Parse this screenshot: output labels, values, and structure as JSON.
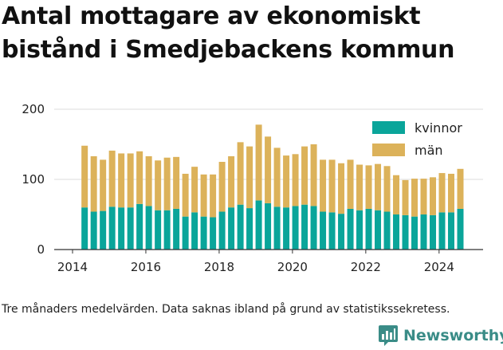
{
  "title": "Antal mottagare av ekonomiskt bistånd i Smedjebackens kommun",
  "caption": "Tre månaders medelvärden. Data saknas ibland på grund av statistikssekretess.",
  "brand": {
    "name": "Newsworthy",
    "color": "#3a8c87",
    "icon": "bar-chart-logo-icon"
  },
  "colors": {
    "kvinnor": "#0aa59a",
    "man": "#dcb25a",
    "axis": "#333333",
    "grid": "#dddddd"
  },
  "chart_data": {
    "type": "bar",
    "stacked": true,
    "x_tick_labels": [
      "2014",
      "2016",
      "2018",
      "2020",
      "2022",
      "2024"
    ],
    "x_range": [
      2013.5,
      2025.2
    ],
    "y_tick_labels": [
      "0",
      "100",
      "200"
    ],
    "ylim": [
      0,
      200
    ],
    "grid": "horizontal",
    "legend_position": "top-right",
    "x": [
      2014.33,
      2014.58,
      2014.83,
      2015.08,
      2015.33,
      2015.58,
      2015.83,
      2016.08,
      2016.33,
      2016.58,
      2016.83,
      2017.08,
      2017.33,
      2017.58,
      2017.83,
      2018.08,
      2018.33,
      2018.58,
      2018.83,
      2019.08,
      2019.33,
      2019.58,
      2019.83,
      2020.08,
      2020.33,
      2020.58,
      2020.83,
      2021.08,
      2021.33,
      2021.58,
      2021.83,
      2022.08,
      2022.33,
      2022.58,
      2022.83,
      2023.08,
      2023.33,
      2023.58,
      2023.83,
      2024.08,
      2024.33,
      2024.58
    ],
    "series": [
      {
        "name": "kvinnor",
        "color": "#0aa59a",
        "values": [
          60,
          54,
          55,
          61,
          60,
          60,
          65,
          62,
          56,
          56,
          58,
          47,
          53,
          47,
          46,
          54,
          60,
          64,
          59,
          70,
          66,
          61,
          60,
          62,
          64,
          62,
          54,
          53,
          51,
          58,
          56,
          58,
          56,
          54,
          50,
          49,
          47,
          50,
          49,
          53,
          53,
          58
        ]
      },
      {
        "name": "män",
        "color": "#dcb25a",
        "values": [
          88,
          79,
          73,
          80,
          77,
          77,
          75,
          71,
          71,
          75,
          74,
          61,
          65,
          60,
          61,
          71,
          73,
          89,
          88,
          108,
          95,
          84,
          74,
          74,
          83,
          88,
          74,
          75,
          72,
          70,
          65,
          62,
          66,
          65,
          56,
          50,
          54,
          51,
          54,
          56,
          55,
          57
        ]
      }
    ]
  }
}
